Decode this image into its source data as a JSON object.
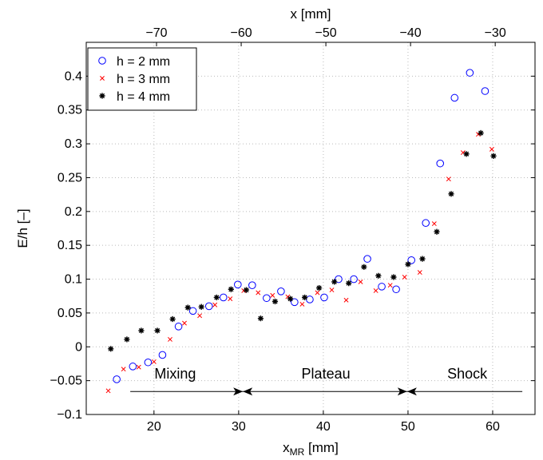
{
  "chart_data": {
    "type": "scatter",
    "xlabel": "x",
    "xlabel_sub": "MR",
    "xlabel_unit": " [mm]",
    "x2label": "x [mm]",
    "ylabel": "E/h [–]",
    "xlim": [
      12,
      65
    ],
    "ylim": [
      -0.1,
      0.45
    ],
    "x2lim": [
      -78.3,
      -25.3
    ],
    "x2_offset": -90.3,
    "grid": true,
    "legend_position": "top-left",
    "xticks": [
      20,
      30,
      40,
      50,
      60
    ],
    "x2ticks": [
      -70,
      -60,
      -50,
      -40,
      -30
    ],
    "yticks": [
      -0.1,
      -0.05,
      0,
      0.05,
      0.1,
      0.15,
      0.2,
      0.25,
      0.3,
      0.35,
      0.4
    ],
    "xtick_labels": [
      "20",
      "30",
      "40",
      "50",
      "60"
    ],
    "x2tick_labels": [
      "−70",
      "−60",
      "−50",
      "−40",
      "−30"
    ],
    "ytick_labels": [
      "−0.1",
      "−0.05",
      "0",
      "0.05",
      "0.1",
      "0.15",
      "0.2",
      "0.25",
      "0.3",
      "0.35",
      "0.4"
    ],
    "series": [
      {
        "name": "h = 2 mm",
        "marker": "circle",
        "color": "#0000ff",
        "points": [
          [
            15.6,
            -0.048
          ],
          [
            17.5,
            -0.029
          ],
          [
            19.3,
            -0.023
          ],
          [
            21.0,
            -0.012
          ],
          [
            22.9,
            0.03
          ],
          [
            24.6,
            0.053
          ],
          [
            26.5,
            0.06
          ],
          [
            28.2,
            0.073
          ],
          [
            29.9,
            0.092
          ],
          [
            31.6,
            0.091
          ],
          [
            33.3,
            0.072
          ],
          [
            35.0,
            0.082
          ],
          [
            36.6,
            0.066
          ],
          [
            38.4,
            0.07
          ],
          [
            40.1,
            0.073
          ],
          [
            41.8,
            0.1
          ],
          [
            43.6,
            0.1
          ],
          [
            45.2,
            0.13
          ],
          [
            46.9,
            0.089
          ],
          [
            48.6,
            0.085
          ],
          [
            50.4,
            0.128
          ],
          [
            52.1,
            0.183
          ],
          [
            53.8,
            0.271
          ],
          [
            55.5,
            0.368
          ],
          [
            57.3,
            0.405
          ],
          [
            59.1,
            0.378
          ]
        ]
      },
      {
        "name": "h = 3 mm",
        "marker": "cross",
        "color": "#ff0000",
        "points": [
          [
            14.6,
            -0.065
          ],
          [
            16.4,
            -0.033
          ],
          [
            18.2,
            -0.03
          ],
          [
            20.0,
            -0.022
          ],
          [
            21.9,
            0.011
          ],
          [
            23.6,
            0.035
          ],
          [
            25.4,
            0.046
          ],
          [
            27.2,
            0.062
          ],
          [
            29.0,
            0.071
          ],
          [
            30.6,
            0.083
          ],
          [
            32.3,
            0.08
          ],
          [
            34.0,
            0.076
          ],
          [
            35.8,
            0.074
          ],
          [
            37.5,
            0.063
          ],
          [
            39.3,
            0.08
          ],
          [
            41.0,
            0.084
          ],
          [
            42.7,
            0.069
          ],
          [
            44.4,
            0.096
          ],
          [
            46.2,
            0.083
          ],
          [
            47.9,
            0.091
          ],
          [
            49.6,
            0.103
          ],
          [
            51.4,
            0.11
          ],
          [
            53.1,
            0.182
          ],
          [
            54.8,
            0.248
          ],
          [
            56.5,
            0.287
          ],
          [
            58.3,
            0.314
          ],
          [
            59.9,
            0.292
          ]
        ]
      },
      {
        "name": "h = 4 mm",
        "marker": "asterisk",
        "color": "#000000",
        "points": [
          [
            14.9,
            -0.003
          ],
          [
            16.8,
            0.011
          ],
          [
            18.5,
            0.024
          ],
          [
            20.4,
            0.024
          ],
          [
            22.2,
            0.041
          ],
          [
            24.0,
            0.058
          ],
          [
            25.6,
            0.059
          ],
          [
            27.4,
            0.073
          ],
          [
            29.1,
            0.085
          ],
          [
            30.9,
            0.084
          ],
          [
            32.6,
            0.042
          ],
          [
            34.3,
            0.067
          ],
          [
            36.1,
            0.071
          ],
          [
            37.8,
            0.073
          ],
          [
            39.5,
            0.087
          ],
          [
            41.3,
            0.096
          ],
          [
            43.0,
            0.094
          ],
          [
            44.8,
            0.118
          ],
          [
            46.5,
            0.105
          ],
          [
            48.3,
            0.103
          ],
          [
            50.0,
            0.122
          ],
          [
            51.7,
            0.13
          ],
          [
            53.4,
            0.17
          ],
          [
            55.1,
            0.226
          ],
          [
            56.9,
            0.285
          ],
          [
            58.6,
            0.316
          ],
          [
            60.1,
            0.282
          ]
        ]
      }
    ],
    "annotations": [
      {
        "text": "Mixing",
        "x": 22.5,
        "y": -0.04
      },
      {
        "text": "Plateau",
        "x": 40.3,
        "y": -0.04
      },
      {
        "text": "Shock",
        "x": 57.0,
        "y": -0.04
      }
    ],
    "region_arrows": {
      "y": -0.066,
      "line_start": 17.2,
      "line_end": 63.5,
      "boundaries": [
        30.5,
        49.9
      ]
    }
  }
}
